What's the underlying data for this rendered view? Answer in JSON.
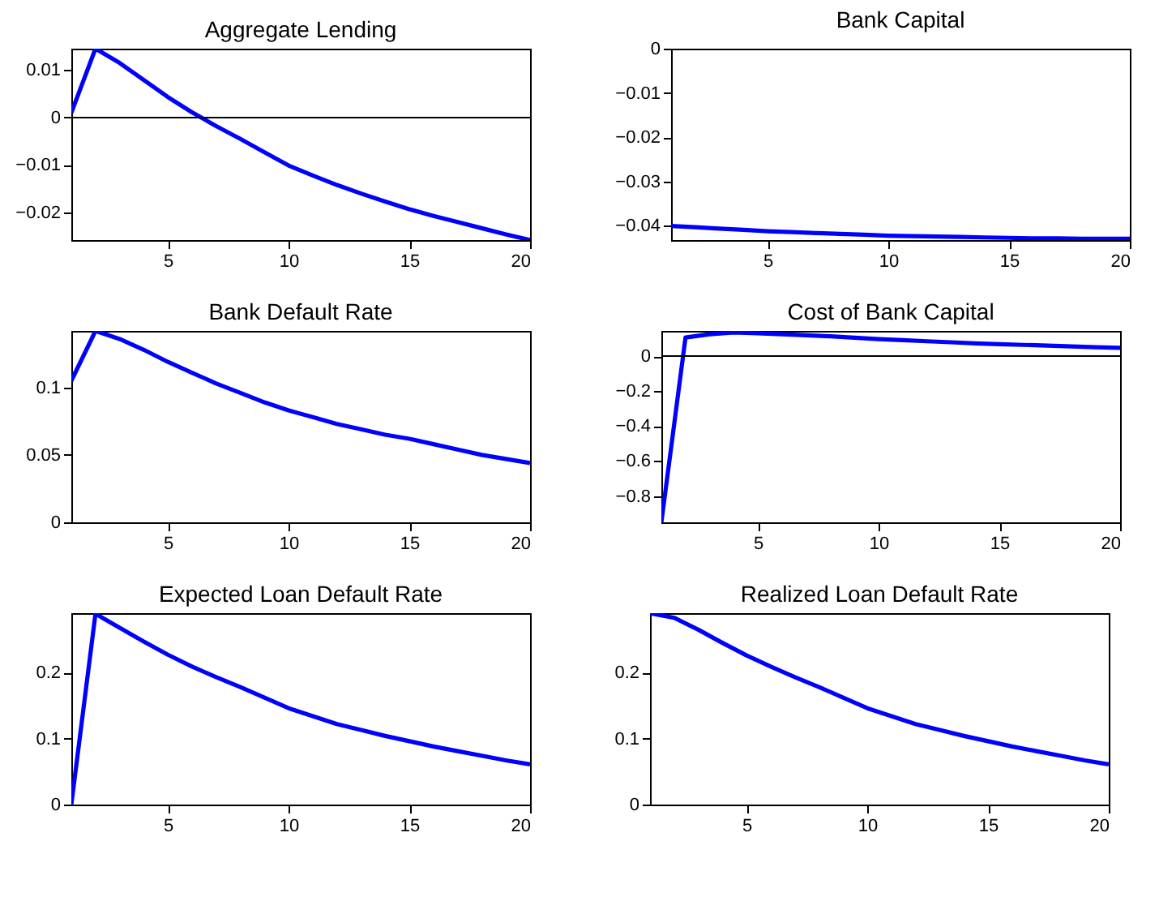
{
  "chart_data": [
    {
      "type": "line",
      "title": "Aggregate Lending",
      "x": [
        1,
        2,
        3,
        4,
        5,
        6,
        7,
        8,
        9,
        10,
        11,
        12,
        13,
        14,
        15,
        16,
        17,
        18,
        19,
        20
      ],
      "xlim": [
        1,
        20
      ],
      "xticks": [
        5,
        10,
        15,
        20
      ],
      "ylim": [
        -0.0258,
        0.0145
      ],
      "yticks": [
        -0.02,
        -0.01,
        0,
        0.01
      ],
      "grid": false,
      "series": [
        {
          "color": "#0000ff",
          "values": [
            0.001,
            0.0145,
            0.0115,
            0.0079,
            0.0043,
            0.0011,
            -0.0018,
            -0.0045,
            -0.0073,
            -0.0101,
            -0.0122,
            -0.0142,
            -0.016,
            -0.0177,
            -0.0193,
            -0.0207,
            -0.022,
            -0.0233,
            -0.0246,
            -0.0258
          ]
        }
      ],
      "ref_lines": [
        {
          "axis": "y",
          "value": 0,
          "color": "#000000"
        }
      ]
    },
    {
      "type": "line",
      "title": "Bank Capital",
      "x": [
        1,
        2,
        3,
        4,
        5,
        6,
        7,
        8,
        9,
        10,
        11,
        12,
        13,
        14,
        15,
        16,
        17,
        18,
        19,
        20
      ],
      "xlim": [
        1,
        20
      ],
      "xticks": [
        5,
        10,
        15,
        20
      ],
      "ylim": [
        -0.0433,
        0
      ],
      "yticks": [
        -0.04,
        -0.03,
        -0.02,
        -0.01,
        0
      ],
      "grid": false,
      "series": [
        {
          "color": "#0000ff",
          "values": [
            -0.0401,
            -0.0404,
            -0.0407,
            -0.041,
            -0.0413,
            -0.0415,
            -0.0417,
            -0.0419,
            -0.0421,
            -0.0423,
            -0.0424,
            -0.0425,
            -0.0426,
            -0.0427,
            -0.0428,
            -0.0429,
            -0.0429,
            -0.043,
            -0.043,
            -0.043
          ]
        }
      ]
    },
    {
      "type": "line",
      "title": "Bank Default Rate",
      "x": [
        1,
        2,
        3,
        4,
        5,
        6,
        7,
        8,
        9,
        10,
        11,
        12,
        13,
        14,
        15,
        16,
        17,
        18,
        19,
        20
      ],
      "xlim": [
        1,
        20
      ],
      "xticks": [
        5,
        10,
        15,
        20
      ],
      "ylim": [
        0,
        0.142
      ],
      "yticks": [
        0,
        0.05,
        0.1
      ],
      "grid": false,
      "series": [
        {
          "color": "#0000ff",
          "values": [
            0.105,
            0.142,
            0.136,
            0.128,
            0.119,
            0.111,
            0.103,
            0.096,
            0.089,
            0.083,
            0.078,
            0.073,
            0.069,
            0.065,
            0.062,
            0.058,
            0.054,
            0.05,
            0.047,
            0.044
          ]
        }
      ]
    },
    {
      "type": "line",
      "title": "Cost of Bank Capital",
      "x": [
        1,
        2,
        3,
        4,
        5,
        6,
        7,
        8,
        9,
        10,
        11,
        12,
        13,
        14,
        15,
        16,
        17,
        18,
        19,
        20
      ],
      "xlim": [
        1,
        20
      ],
      "xticks": [
        5,
        10,
        15,
        20
      ],
      "ylim": [
        -0.95,
        0.144
      ],
      "yticks": [
        -0.8,
        -0.6,
        -0.4,
        -0.2,
        0
      ],
      "grid": false,
      "series": [
        {
          "color": "#0000ff",
          "values": [
            -0.95,
            0.106,
            0.125,
            0.135,
            0.13,
            0.125,
            0.119,
            0.113,
            0.105,
            0.097,
            0.091,
            0.085,
            0.079,
            0.073,
            0.068,
            0.064,
            0.06,
            0.055,
            0.051,
            0.047
          ]
        }
      ],
      "ref_lines": [
        {
          "axis": "y",
          "value": 0,
          "color": "#000000"
        }
      ]
    },
    {
      "type": "line",
      "title": "Expected Loan Default Rate",
      "x": [
        1,
        2,
        3,
        4,
        5,
        6,
        7,
        8,
        9,
        10,
        11,
        12,
        13,
        14,
        15,
        16,
        17,
        18,
        19,
        20
      ],
      "xlim": [
        1,
        20
      ],
      "xticks": [
        5,
        10,
        15,
        20
      ],
      "ylim": [
        0,
        0.29
      ],
      "yticks": [
        0,
        0.1,
        0.2
      ],
      "grid": false,
      "series": [
        {
          "color": "#0000ff",
          "values": [
            0,
            0.289,
            0.268,
            0.247,
            0.227,
            0.209,
            0.193,
            0.178,
            0.162,
            0.146,
            0.134,
            0.122,
            0.113,
            0.104,
            0.096,
            0.088,
            0.081,
            0.074,
            0.067,
            0.061
          ]
        }
      ]
    },
    {
      "type": "line",
      "title": "Realized Loan Default Rate",
      "x": [
        1,
        2,
        3,
        4,
        5,
        6,
        7,
        8,
        9,
        10,
        11,
        12,
        13,
        14,
        15,
        16,
        17,
        18,
        19,
        20
      ],
      "xlim": [
        1,
        20
      ],
      "xticks": [
        5,
        10,
        15,
        20
      ],
      "ylim": [
        0,
        0.29
      ],
      "yticks": [
        0,
        0.1,
        0.2
      ],
      "grid": false,
      "series": [
        {
          "color": "#0000ff",
          "values": [
            0.29,
            0.283,
            0.265,
            0.245,
            0.226,
            0.209,
            0.193,
            0.178,
            0.162,
            0.146,
            0.134,
            0.122,
            0.113,
            0.104,
            0.096,
            0.088,
            0.081,
            0.074,
            0.067,
            0.061
          ]
        }
      ]
    }
  ]
}
